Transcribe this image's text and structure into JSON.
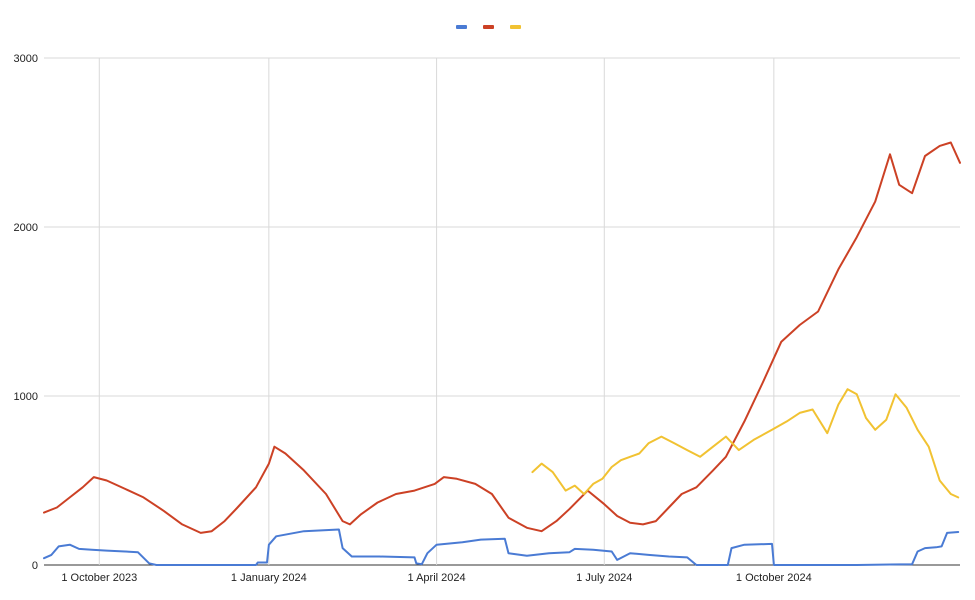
{
  "chart_data": {
    "type": "line",
    "title": "",
    "xlabel": "",
    "ylabel": "",
    "ylim": [
      0,
      3000
    ],
    "xlim": [
      "2023-09-01",
      "2025-01-10"
    ],
    "grid": true,
    "legend_position": "top-center",
    "y_ticks": [
      0,
      1000,
      2000,
      3000
    ],
    "y_tick_labels": [
      "0",
      "1000",
      "2000",
      "3000"
    ],
    "x_ticks": [
      "2023-10-01",
      "2024-01-01",
      "2024-04-01",
      "2024-07-01",
      "2024-10-01"
    ],
    "x_tick_labels": [
      "1 October 2023",
      "1 January 2024",
      "1 April 2024",
      "1 July 2024",
      "1 October 2024"
    ],
    "series": [
      {
        "color": "#4a7bd4",
        "points": [
          [
            "2023-09-01",
            40
          ],
          [
            "2023-09-05",
            60
          ],
          [
            "2023-09-09",
            110
          ],
          [
            "2023-09-15",
            120
          ],
          [
            "2023-09-20",
            95
          ],
          [
            "2023-09-27",
            90
          ],
          [
            "2023-10-05",
            85
          ],
          [
            "2023-10-15",
            80
          ],
          [
            "2023-10-22",
            75
          ],
          [
            "2023-10-28",
            10
          ],
          [
            "2023-11-01",
            0
          ],
          [
            "2023-12-25",
            0
          ],
          [
            "2023-12-26",
            15
          ],
          [
            "2023-12-31",
            15
          ],
          [
            "2024-01-01",
            120
          ],
          [
            "2024-01-05",
            170
          ],
          [
            "2024-01-20",
            200
          ],
          [
            "2024-02-08",
            210
          ],
          [
            "2024-02-10",
            100
          ],
          [
            "2024-02-15",
            50
          ],
          [
            "2024-03-01",
            50
          ],
          [
            "2024-03-20",
            45
          ],
          [
            "2024-03-21",
            10
          ],
          [
            "2024-03-24",
            5
          ],
          [
            "2024-03-27",
            70
          ],
          [
            "2024-04-01",
            120
          ],
          [
            "2024-04-15",
            135
          ],
          [
            "2024-04-25",
            150
          ],
          [
            "2024-05-08",
            155
          ],
          [
            "2024-05-10",
            70
          ],
          [
            "2024-05-20",
            55
          ],
          [
            "2024-06-01",
            70
          ],
          [
            "2024-06-12",
            75
          ],
          [
            "2024-06-15",
            95
          ],
          [
            "2024-06-25",
            90
          ],
          [
            "2024-07-05",
            80
          ],
          [
            "2024-07-08",
            30
          ],
          [
            "2024-07-15",
            70
          ],
          [
            "2024-07-25",
            60
          ],
          [
            "2024-08-05",
            50
          ],
          [
            "2024-08-15",
            45
          ],
          [
            "2024-08-20",
            0
          ],
          [
            "2024-09-06",
            0
          ],
          [
            "2024-09-08",
            100
          ],
          [
            "2024-09-15",
            120
          ],
          [
            "2024-09-30",
            125
          ],
          [
            "2024-10-01",
            0
          ],
          [
            "2024-11-15",
            0
          ],
          [
            "2024-12-15",
            5
          ],
          [
            "2024-12-18",
            80
          ],
          [
            "2024-12-22",
            100
          ],
          [
            "2024-12-28",
            105
          ],
          [
            "2024-12-31",
            110
          ],
          [
            "2025-01-03",
            190
          ],
          [
            "2025-01-09",
            195
          ]
        ]
      },
      {
        "color": "#cc4125",
        "points": [
          [
            "2023-09-01",
            310
          ],
          [
            "2023-09-08",
            340
          ],
          [
            "2023-09-15",
            400
          ],
          [
            "2023-09-22",
            460
          ],
          [
            "2023-09-28",
            520
          ],
          [
            "2023-10-05",
            500
          ],
          [
            "2023-10-15",
            450
          ],
          [
            "2023-10-25",
            400
          ],
          [
            "2023-11-05",
            320
          ],
          [
            "2023-11-15",
            240
          ],
          [
            "2023-11-25",
            190
          ],
          [
            "2023-12-01",
            200
          ],
          [
            "2023-12-08",
            260
          ],
          [
            "2023-12-15",
            340
          ],
          [
            "2023-12-25",
            460
          ],
          [
            "2024-01-01",
            600
          ],
          [
            "2024-01-04",
            700
          ],
          [
            "2024-01-10",
            660
          ],
          [
            "2024-01-20",
            560
          ],
          [
            "2024-02-01",
            420
          ],
          [
            "2024-02-10",
            260
          ],
          [
            "2024-02-14",
            240
          ],
          [
            "2024-02-20",
            300
          ],
          [
            "2024-02-29",
            370
          ],
          [
            "2024-03-10",
            420
          ],
          [
            "2024-03-20",
            440
          ],
          [
            "2024-03-31",
            480
          ],
          [
            "2024-04-05",
            520
          ],
          [
            "2024-04-12",
            510
          ],
          [
            "2024-04-22",
            480
          ],
          [
            "2024-05-01",
            420
          ],
          [
            "2024-05-10",
            280
          ],
          [
            "2024-05-20",
            220
          ],
          [
            "2024-05-28",
            200
          ],
          [
            "2024-06-05",
            260
          ],
          [
            "2024-06-12",
            330
          ],
          [
            "2024-06-22",
            440
          ],
          [
            "2024-07-01",
            360
          ],
          [
            "2024-07-08",
            290
          ],
          [
            "2024-07-15",
            250
          ],
          [
            "2024-07-22",
            240
          ],
          [
            "2024-07-29",
            260
          ],
          [
            "2024-08-05",
            340
          ],
          [
            "2024-08-12",
            420
          ],
          [
            "2024-08-20",
            460
          ],
          [
            "2024-08-29",
            560
          ],
          [
            "2024-09-05",
            640
          ],
          [
            "2024-09-15",
            850
          ],
          [
            "2024-09-25",
            1080
          ],
          [
            "2024-10-05",
            1320
          ],
          [
            "2024-10-15",
            1420
          ],
          [
            "2024-10-25",
            1500
          ],
          [
            "2024-11-05",
            1750
          ],
          [
            "2024-11-15",
            1940
          ],
          [
            "2024-11-25",
            2150
          ],
          [
            "2024-12-03",
            2430
          ],
          [
            "2024-12-08",
            2250
          ],
          [
            "2024-12-15",
            2200
          ],
          [
            "2024-12-22",
            2420
          ],
          [
            "2024-12-30",
            2480
          ],
          [
            "2025-01-05",
            2500
          ],
          [
            "2025-01-10",
            2380
          ]
        ]
      },
      {
        "color": "#f1c232",
        "points": [
          [
            "2024-05-23",
            550
          ],
          [
            "2024-05-28",
            600
          ],
          [
            "2024-06-03",
            550
          ],
          [
            "2024-06-10",
            440
          ],
          [
            "2024-06-15",
            470
          ],
          [
            "2024-06-20",
            420
          ],
          [
            "2024-06-25",
            480
          ],
          [
            "2024-06-30",
            510
          ],
          [
            "2024-07-05",
            580
          ],
          [
            "2024-07-10",
            620
          ],
          [
            "2024-07-15",
            640
          ],
          [
            "2024-07-20",
            660
          ],
          [
            "2024-07-25",
            720
          ],
          [
            "2024-08-01",
            760
          ],
          [
            "2024-08-08",
            720
          ],
          [
            "2024-08-15",
            680
          ],
          [
            "2024-08-22",
            640
          ],
          [
            "2024-08-29",
            700
          ],
          [
            "2024-09-05",
            760
          ],
          [
            "2024-09-12",
            680
          ],
          [
            "2024-09-20",
            740
          ],
          [
            "2024-09-30",
            800
          ],
          [
            "2024-10-08",
            850
          ],
          [
            "2024-10-15",
            900
          ],
          [
            "2024-10-22",
            920
          ],
          [
            "2024-10-30",
            780
          ],
          [
            "2024-11-05",
            950
          ],
          [
            "2024-11-10",
            1040
          ],
          [
            "2024-11-15",
            1010
          ],
          [
            "2024-11-20",
            870
          ],
          [
            "2024-11-25",
            800
          ],
          [
            "2024-12-01",
            860
          ],
          [
            "2024-12-06",
            1010
          ],
          [
            "2024-12-12",
            930
          ],
          [
            "2024-12-18",
            800
          ],
          [
            "2024-12-24",
            700
          ],
          [
            "2024-12-30",
            500
          ],
          [
            "2025-01-05",
            420
          ],
          [
            "2025-01-09",
            400
          ]
        ]
      }
    ]
  }
}
